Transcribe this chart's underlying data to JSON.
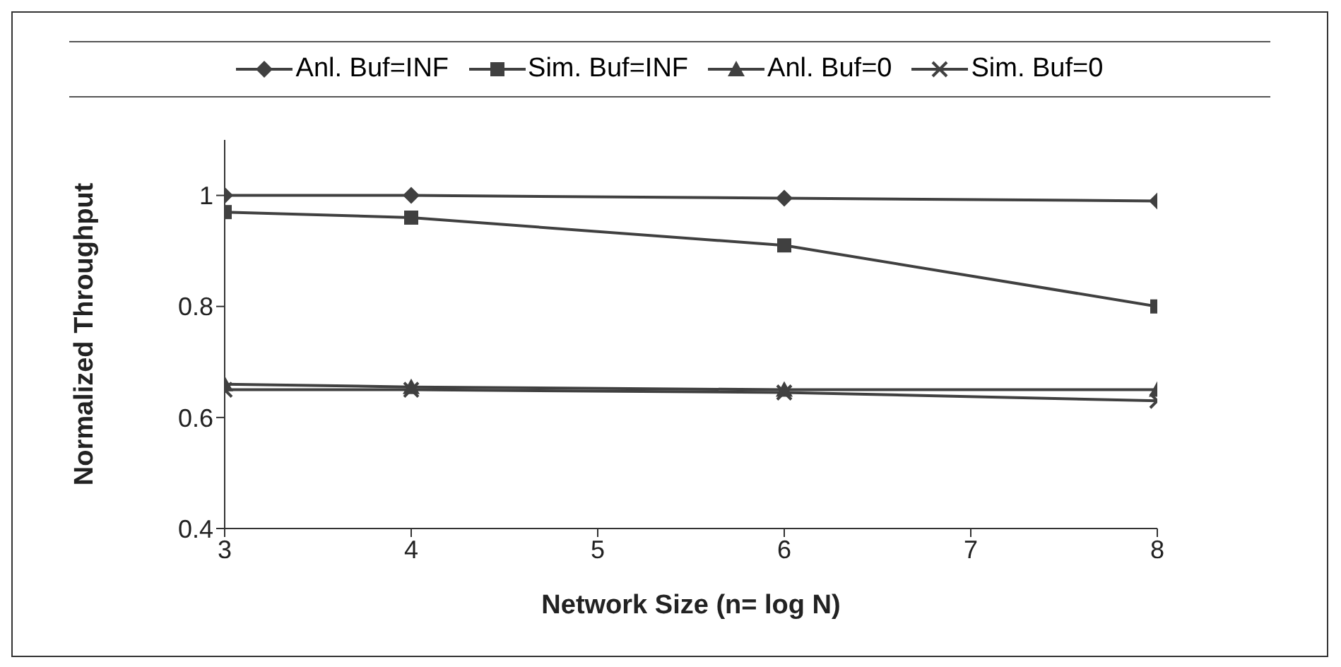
{
  "chart_data": {
    "type": "line",
    "xlabel": "Network Size (n= log N)",
    "ylabel": "Normalized Throughput",
    "x": [
      3,
      4,
      6,
      8
    ],
    "xlim": [
      3,
      8
    ],
    "xticks": [
      3,
      4,
      5,
      6,
      7,
      8
    ],
    "ylim": [
      0.4,
      1.1
    ],
    "yticks": [
      0.4,
      0.6,
      0.8,
      1
    ],
    "legend": "top",
    "grid": false,
    "series": [
      {
        "name": "Anl. Buf=INF",
        "color": "#404040",
        "marker": "diamond",
        "values": [
          1.0,
          1.0,
          0.995,
          0.99
        ]
      },
      {
        "name": "Sim. Buf=INF",
        "color": "#404040",
        "marker": "square",
        "values": [
          0.97,
          0.96,
          0.91,
          0.8
        ]
      },
      {
        "name": "Anl. Buf=0",
        "color": "#404040",
        "marker": "triangle",
        "values": [
          0.66,
          0.655,
          0.65,
          0.65
        ]
      },
      {
        "name": "Sim. Buf=0",
        "color": "#404040",
        "marker": "cross",
        "values": [
          0.65,
          0.65,
          0.645,
          0.63
        ]
      }
    ]
  }
}
